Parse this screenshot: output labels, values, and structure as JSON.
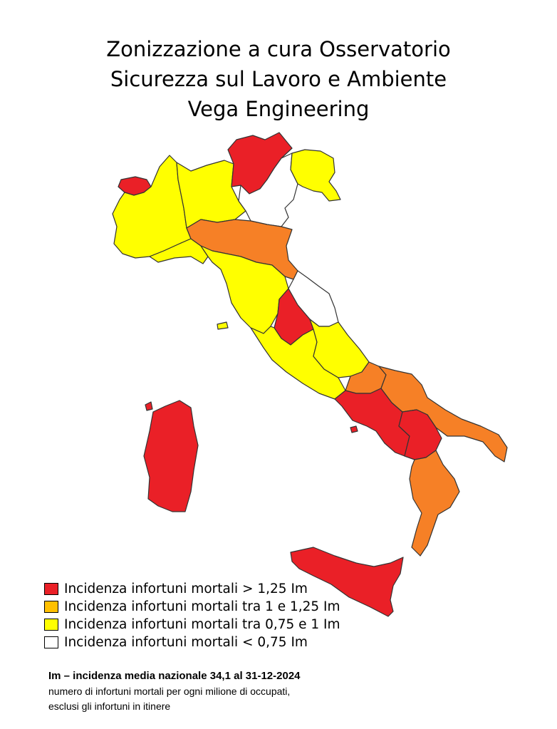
{
  "title": {
    "line1": "Zonizzazione a cura Osservatorio",
    "line2": "Sicurezza sul Lavoro e Ambiente",
    "line3": "Vega Engineering"
  },
  "colors": {
    "red": "#ea2027",
    "orange": "#f68026",
    "legend_orange": "#ffc000",
    "yellow": "#ffff00",
    "white": "#ffffff"
  },
  "legend": [
    {
      "label": "Incidenza infortuni mortali > 1,25 Im",
      "color": "#ea2027"
    },
    {
      "label": "Incidenza infortuni mortali tra 1 e 1,25 Im",
      "color": "#ffc000"
    },
    {
      "label": "Incidenza infortuni mortali tra 0,75 e 1 Im",
      "color": "#ffff00"
    },
    {
      "label": "Incidenza infortuni mortali < 0,75 Im",
      "color": "#ffffff"
    }
  ],
  "note": {
    "headline": "Im – incidenza media nazionale 34,1 al 31-12-2024",
    "line1": "numero di infortuni mortali per ogni milione di occupati,",
    "line2": "esclusi gli infortuni in itinere"
  }
}
